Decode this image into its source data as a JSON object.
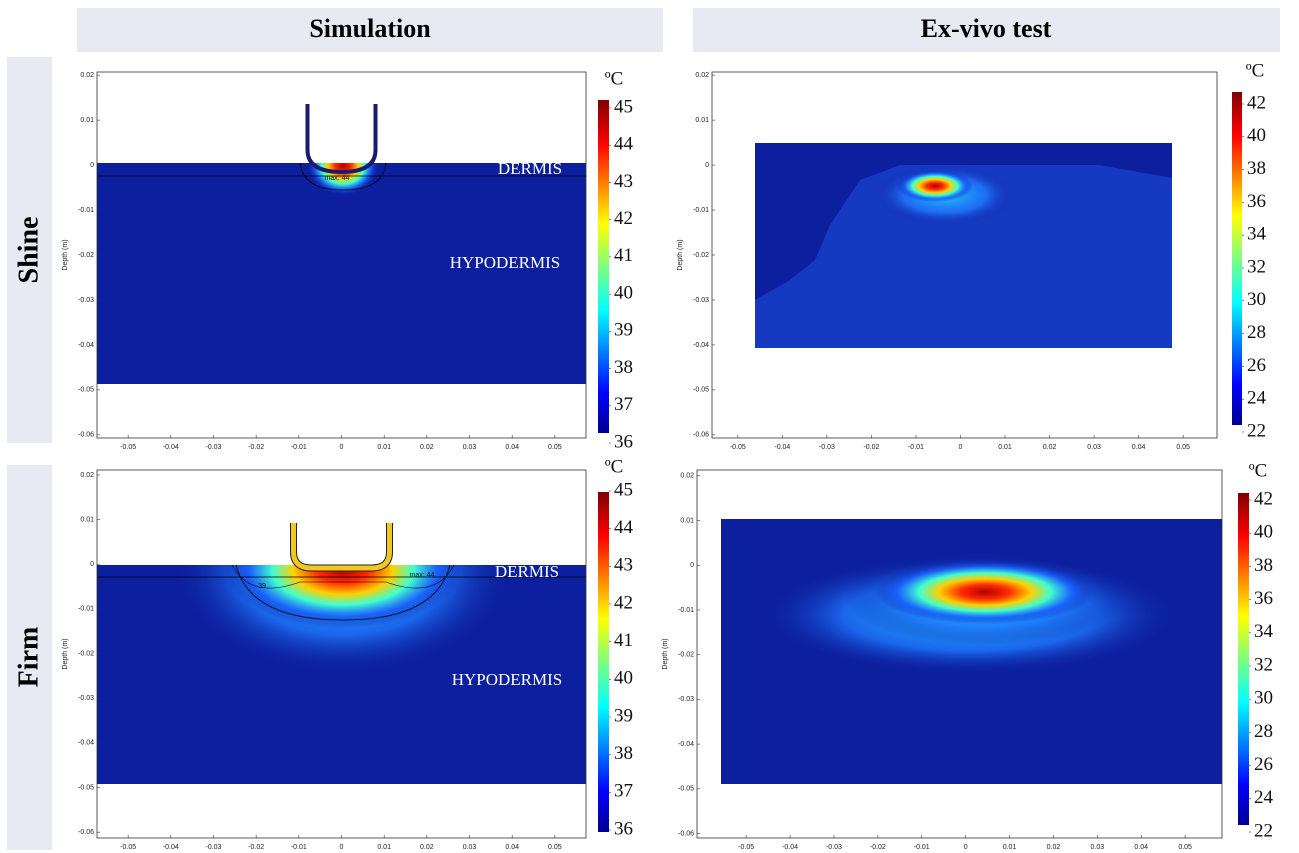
{
  "columns": [
    "Simulation",
    "Ex-vivo test"
  ],
  "rows": [
    "Shine",
    "Firm"
  ],
  "chart_data": [
    {
      "type": "heatmap",
      "ylabel": "Depth (m)",
      "xlim": [
        -0.0573,
        0.0573
      ],
      "ylim": [
        -0.0607,
        0.0207
      ],
      "xticks": [
        -0.05,
        -0.04,
        -0.03,
        -0.02,
        -0.01,
        0,
        0.01,
        0.02,
        0.03,
        0.04,
        0.05
      ],
      "yticks": [
        0.02,
        0.01,
        0,
        -0.01,
        -0.02,
        -0.03,
        -0.04,
        -0.05,
        -0.06
      ],
      "colorbar": {
        "label": "ºC",
        "lim": [
          36,
          45
        ],
        "ticks": [
          36,
          37,
          38,
          39,
          40,
          41,
          42,
          43,
          44,
          45
        ]
      },
      "annotations": [
        "DERMIS",
        "HYPODERMIS",
        "max: 44"
      ]
    },
    {
      "type": "heatmap",
      "ylabel": "Depth (m)",
      "xlim": [
        -0.0558,
        0.0576
      ],
      "ylim": [
        -0.0607,
        0.0207
      ],
      "xticks": [
        -0.05,
        -0.04,
        -0.03,
        -0.02,
        -0.01,
        0,
        0.01,
        0.02,
        0.03,
        0.04,
        0.05
      ],
      "yticks": [
        0.02,
        0.01,
        0,
        -0.01,
        -0.02,
        -0.03,
        -0.04,
        -0.05,
        -0.06
      ],
      "colorbar": {
        "label": "ºC",
        "lim": [
          22,
          42
        ],
        "ticks": [
          22,
          24,
          26,
          28,
          30,
          32,
          34,
          36,
          38,
          40,
          42
        ]
      },
      "annotations": []
    },
    {
      "type": "heatmap",
      "ylabel": "Depth (m)",
      "xlim": [
        -0.0573,
        0.0573
      ],
      "ylim": [
        -0.0613,
        0.0211
      ],
      "xticks": [
        -0.05,
        -0.04,
        -0.03,
        -0.02,
        -0.01,
        0,
        0.01,
        0.02,
        0.03,
        0.04,
        0.05
      ],
      "yticks": [
        0.02,
        0.01,
        0,
        -0.01,
        -0.02,
        -0.03,
        -0.04,
        -0.05,
        -0.06
      ],
      "colorbar": {
        "label": "ºC",
        "lim": [
          36,
          45
        ],
        "ticks": [
          36,
          37,
          38,
          39,
          40,
          41,
          42,
          43,
          44,
          45
        ]
      },
      "annotations": [
        "DERMIS",
        "HYPODERMIS",
        "max: 44",
        "39"
      ]
    },
    {
      "type": "heatmap",
      "ylabel": "Depth (m)",
      "xlim": [
        -0.0612,
        0.0584
      ],
      "ylim": [
        -0.061,
        0.0213
      ],
      "xticks": [
        -0.05,
        -0.04,
        -0.03,
        -0.02,
        -0.01,
        0,
        0.01,
        0.02,
        0.03,
        0.04,
        0.05
      ],
      "yticks": [
        0.02,
        0.01,
        0,
        -0.01,
        -0.02,
        -0.03,
        -0.04,
        -0.05,
        -0.06
      ],
      "colorbar": {
        "label": "ºC",
        "lim": [
          22,
          42
        ],
        "ticks": [
          22,
          24,
          26,
          28,
          30,
          32,
          34,
          36,
          38,
          40,
          42
        ]
      },
      "annotations": []
    }
  ]
}
